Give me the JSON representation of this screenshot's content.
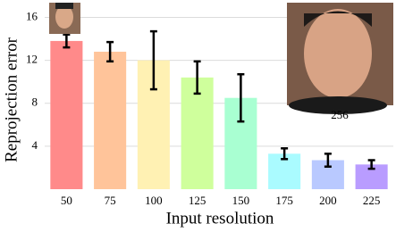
{
  "chart_data": {
    "type": "bar",
    "x_label": "Input resolution",
    "y_label": "Reprojection error",
    "categories": [
      "50",
      "75",
      "100",
      "125",
      "150",
      "175",
      "200",
      "225"
    ],
    "values": [
      13.8,
      12.8,
      12.0,
      10.4,
      8.5,
      3.3,
      2.7,
      2.3
    ],
    "errors": [
      0.6,
      0.9,
      2.7,
      1.5,
      2.2,
      0.5,
      0.6,
      0.4
    ],
    "colors": [
      "#ff8a8a",
      "#ffc49a",
      "#fff1b3",
      "#cfff9c",
      "#a9ffd2",
      "#aafbff",
      "#b9c9ff",
      "#b99cff"
    ],
    "ylim": [
      0,
      17.2
    ],
    "yticks": [
      4,
      8,
      12,
      16
    ],
    "grid": true
  },
  "image_caption": "256"
}
